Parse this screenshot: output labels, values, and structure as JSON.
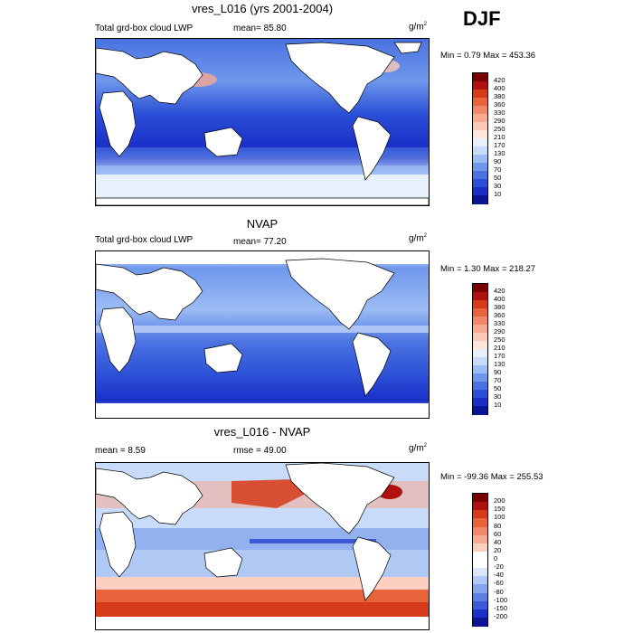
{
  "season": "DJF",
  "panels": [
    {
      "title": "vres_L016 (yrs 2001-2004)",
      "left_label": "Total grd-box cloud LWP",
      "mean_label": "mean=  85.80",
      "rmse_label": "",
      "units": "g/m",
      "units_sup": "2",
      "minmax": "Min =   0.79 Max = 453.36",
      "colorbar_labels": [
        "420",
        "400",
        "380",
        "360",
        "330",
        "290",
        "250",
        "210",
        "170",
        "130",
        "90",
        "70",
        "50",
        "30",
        "10"
      ],
      "colorbar_colors": [
        "#7a0000",
        "#b01010",
        "#d63a1a",
        "#e8623a",
        "#f2866a",
        "#f8aa90",
        "#fcc9b6",
        "#fde6dc",
        "#e8f0fc",
        "#c8dcfa",
        "#9cbcf4",
        "#6f98ec",
        "#4a72e0",
        "#2b4fd6",
        "#1a2fc8",
        "#0c1494"
      ]
    },
    {
      "title": "NVAP",
      "left_label": "Total grd-box cloud LWP",
      "mean_label": "mean=  77.20",
      "rmse_label": "",
      "units": "g/m",
      "units_sup": "2",
      "minmax": "Min =   1.30 Max = 218.27",
      "colorbar_labels": [
        "420",
        "400",
        "380",
        "360",
        "330",
        "290",
        "250",
        "210",
        "170",
        "130",
        "90",
        "70",
        "50",
        "30",
        "10"
      ],
      "colorbar_colors": [
        "#7a0000",
        "#b01010",
        "#d63a1a",
        "#e8623a",
        "#f2866a",
        "#f8aa90",
        "#fcc9b6",
        "#fde6dc",
        "#e8f0fc",
        "#c8dcfa",
        "#9cbcf4",
        "#6f98ec",
        "#4a72e0",
        "#2b4fd6",
        "#1a2fc8",
        "#0c1494"
      ]
    },
    {
      "title": "vres_L016 - NVAP",
      "left_label": "mean =   8.59",
      "mean_label": "",
      "rmse_label": "rmse =  49.00",
      "units": "g/m",
      "units_sup": "2",
      "minmax": "Min = -99.36 Max = 255.53",
      "colorbar_labels": [
        "200",
        "150",
        "100",
        "80",
        "60",
        "40",
        "20",
        "0",
        "-20",
        "-40",
        "-60",
        "-80",
        "-100",
        "-150",
        "-200"
      ],
      "colorbar_colors": [
        "#7a0000",
        "#b01010",
        "#d63a1a",
        "#e8623a",
        "#f2866a",
        "#f8aa90",
        "#fcd0c0",
        "#ffffff",
        "#ffffff",
        "#dbe6fa",
        "#b0c8f4",
        "#86a6ec",
        "#5c80e2",
        "#3a5ad8",
        "#1c30c8",
        "#0c1494"
      ]
    }
  ],
  "chart_data": [
    {
      "type": "heatmap",
      "title": "vres_L016 (yrs 2001-2004)",
      "variable": "Total grd-box cloud LWP",
      "units": "g/m2",
      "mean": 85.8,
      "min": 0.79,
      "max": 453.36,
      "levels": [
        10,
        30,
        50,
        70,
        90,
        130,
        170,
        210,
        250,
        290,
        330,
        360,
        380,
        400,
        420
      ]
    },
    {
      "type": "heatmap",
      "title": "NVAP",
      "variable": "Total grd-box cloud LWP",
      "units": "g/m2",
      "mean": 77.2,
      "min": 1.3,
      "max": 218.27,
      "levels": [
        10,
        30,
        50,
        70,
        90,
        130,
        170,
        210,
        250,
        290,
        330,
        360,
        380,
        400,
        420
      ]
    },
    {
      "type": "heatmap",
      "title": "vres_L016 - NVAP",
      "units": "g/m2",
      "mean": 8.59,
      "rmse": 49.0,
      "min": -99.36,
      "max": 255.53,
      "levels": [
        -200,
        -150,
        -100,
        -80,
        -60,
        -40,
        -20,
        0,
        20,
        40,
        60,
        80,
        100,
        150,
        200
      ]
    }
  ]
}
